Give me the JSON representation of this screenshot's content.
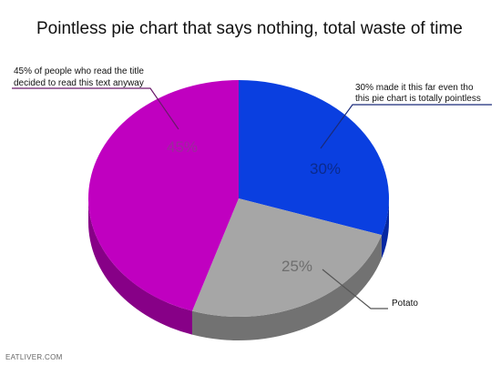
{
  "title": "Pointless pie chart that says nothing, total waste of time",
  "watermark": "EATLIVER.COM",
  "chart_data": {
    "type": "pie",
    "title": "Pointless pie chart that says nothing, total waste of time",
    "three_d": true,
    "start_angle": "12 o'clock, clockwise",
    "slices": [
      {
        "id": "blue",
        "value": 30,
        "label": "30%",
        "color": "#0a3fe0",
        "side_color": "#0628a2",
        "label_color": "#0b2a8c",
        "callout": [
          "30% made it this far even tho",
          "this pie chart is totally pointless"
        ]
      },
      {
        "id": "gray",
        "value": 25,
        "label": "25%",
        "color": "#a6a6a6",
        "side_color": "#727272",
        "label_color": "#6e6e6e",
        "callout": [
          "Potato"
        ]
      },
      {
        "id": "magenta",
        "value": 45,
        "label": "45%",
        "color": "#c000c0",
        "side_color": "#870087",
        "label_color": "#9b2a9b",
        "callout": [
          "45% of people who read the title",
          "decided to read this text anyway"
        ]
      }
    ]
  }
}
